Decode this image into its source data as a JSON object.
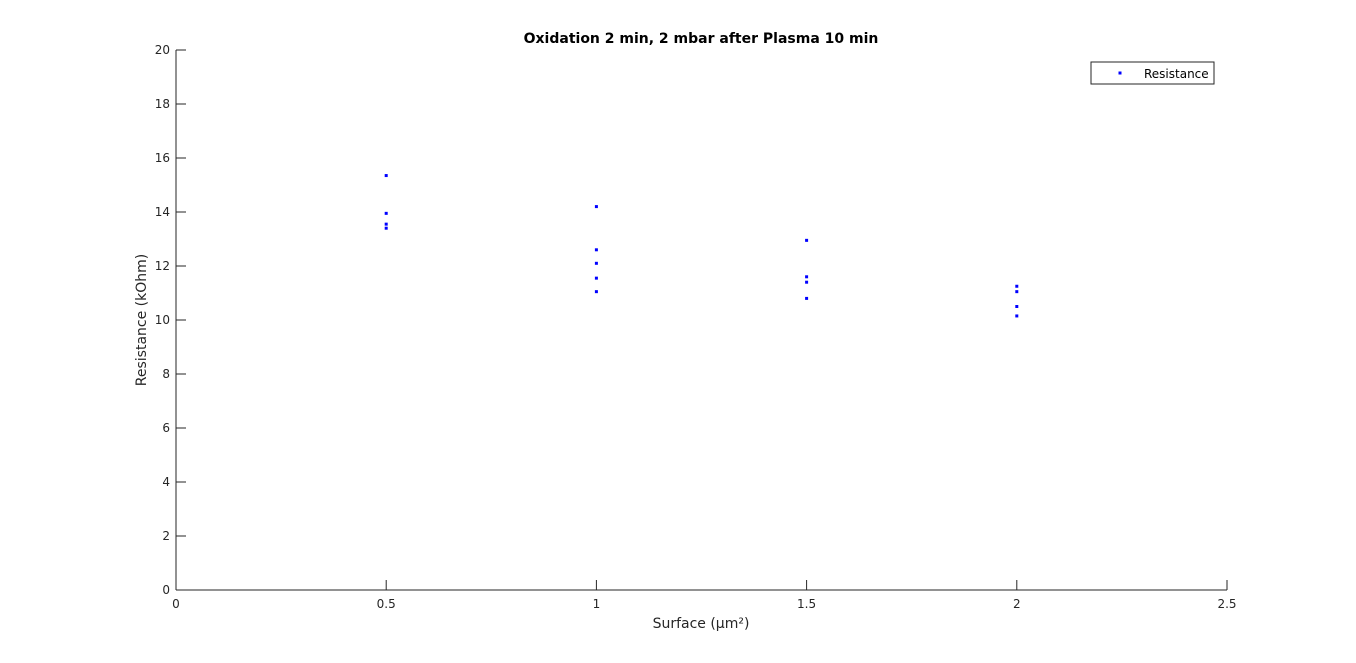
{
  "chart_data": {
    "type": "scatter",
    "title": "Oxidation 2 min, 2 mbar after Plasma 10 min",
    "xlabel": "Surface (µm²)",
    "ylabel": "Resistance (kOhm)",
    "xlim": [
      0,
      2.5
    ],
    "ylim": [
      0,
      20
    ],
    "xticks": [
      0,
      0.5,
      1,
      1.5,
      2,
      2.5
    ],
    "xtick_labels": [
      "0",
      "0.5",
      "1",
      "1.5",
      "2",
      "2.5"
    ],
    "yticks": [
      0,
      2,
      4,
      6,
      8,
      10,
      12,
      14,
      16,
      18,
      20
    ],
    "ytick_labels": [
      "0",
      "2",
      "4",
      "6",
      "8",
      "10",
      "12",
      "14",
      "16",
      "18",
      "20"
    ],
    "grid": false,
    "legend_position": "top-right",
    "series": [
      {
        "name": "Resistance",
        "color": "#0000ff",
        "marker": "point",
        "points": [
          {
            "x": 0.5,
            "y": 15.35
          },
          {
            "x": 0.5,
            "y": 13.95
          },
          {
            "x": 0.5,
            "y": 13.55
          },
          {
            "x": 0.5,
            "y": 13.4
          },
          {
            "x": 1,
            "y": 14.2
          },
          {
            "x": 1,
            "y": 12.6
          },
          {
            "x": 1,
            "y": 12.1
          },
          {
            "x": 1,
            "y": 11.55
          },
          {
            "x": 1,
            "y": 11.05
          },
          {
            "x": 1.5,
            "y": 12.95
          },
          {
            "x": 1.5,
            "y": 11.6
          },
          {
            "x": 1.5,
            "y": 11.4
          },
          {
            "x": 1.5,
            "y": 10.8
          },
          {
            "x": 2,
            "y": 11.25
          },
          {
            "x": 2,
            "y": 11.05
          },
          {
            "x": 2,
            "y": 10.5
          },
          {
            "x": 2,
            "y": 10.15
          }
        ]
      }
    ]
  }
}
